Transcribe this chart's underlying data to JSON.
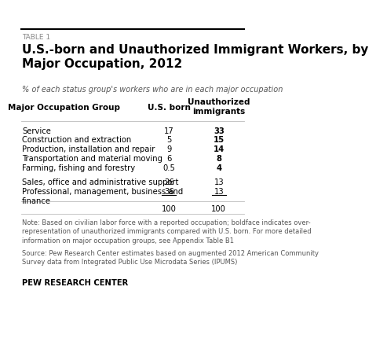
{
  "table_label": "TABLE 1",
  "title": "U.S.-born and Unauthorized Immigrant Workers, by\nMajor Occupation, 2012",
  "subtitle": "% of each status group's workers who are in each major occupation",
  "col_header_occupation": "Major Occupation Group",
  "col_header_usborn": "U.S. born",
  "col_header_unauth": "Unauthorized\nimmigrants",
  "rows": [
    {
      "occupation": "Service",
      "usborn": "17",
      "unauth": "33",
      "unauth_bold": true,
      "usborn_underline": false,
      "unauth_underline": false
    },
    {
      "occupation": "Construction and extraction",
      "usborn": "5",
      "unauth": "15",
      "unauth_bold": true,
      "usborn_underline": false,
      "unauth_underline": false
    },
    {
      "occupation": "Production, installation and repair",
      "usborn": "9",
      "unauth": "14",
      "unauth_bold": true,
      "usborn_underline": false,
      "unauth_underline": false
    },
    {
      "occupation": "Transportation and material moving",
      "usborn": "6",
      "unauth": "8",
      "unauth_bold": true,
      "usborn_underline": false,
      "unauth_underline": false
    },
    {
      "occupation": "Farming, fishing and forestry",
      "usborn": "0.5",
      "unauth": "4",
      "unauth_bold": true,
      "usborn_underline": false,
      "unauth_underline": false
    },
    {
      "occupation": "Sales, office and administrative support",
      "usborn": "26",
      "unauth": "13",
      "unauth_bold": false,
      "usborn_underline": false,
      "unauth_underline": false
    },
    {
      "occupation": "Professional, management, business and\nfinance",
      "usborn": "36",
      "unauth": "13",
      "unauth_bold": false,
      "usborn_underline": true,
      "unauth_underline": true
    },
    {
      "occupation": "",
      "usborn": "100",
      "unauth": "100",
      "unauth_bold": false,
      "usborn_underline": false,
      "unauth_underline": false
    }
  ],
  "note": "Note: Based on civilian labor force with a reported occupation; boldface indicates over-\nrepresentation of unauthorized immigrants compared with U.S. born. For more detailed\ninformation on major occupation groups, see Appendix Table B1",
  "source": "Source: Pew Research Center estimates based on augmented 2012 American Community\nSurvey data from Integrated Public Use Microdata Series (IPUMS)",
  "footer": "PEW RESEARCH CENTER",
  "bg_color": "#ffffff",
  "title_color": "#000000",
  "header_color": "#000000",
  "text_color": "#000000",
  "note_color": "#555555",
  "table_label_color": "#888888"
}
